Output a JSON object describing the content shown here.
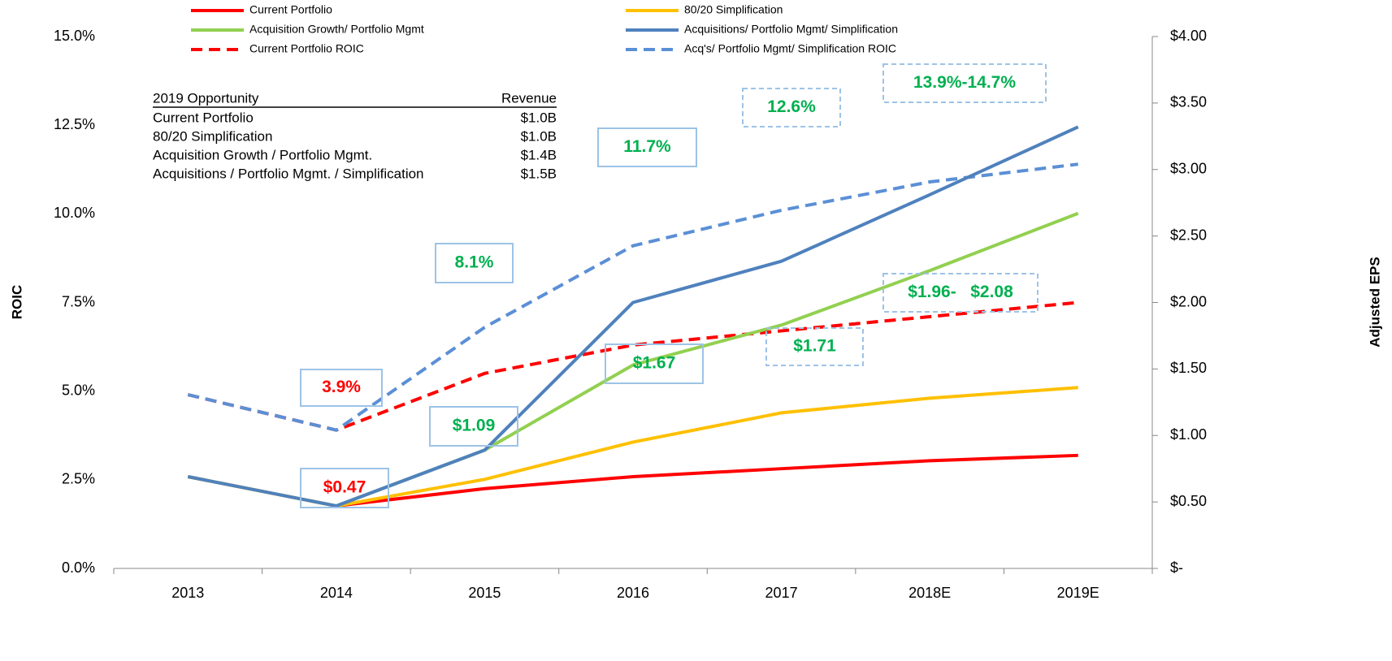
{
  "chart_data": {
    "type": "line",
    "categories": [
      "2013",
      "2014",
      "2015",
      "2016",
      "2017",
      "2018E",
      "2019E"
    ],
    "y_label": "ROIC",
    "y2_label": "Adjusted EPS",
    "ylim": [
      0,
      15
    ],
    "yticks": [
      {
        "value": 0,
        "label": "0.0%"
      },
      {
        "value": 2.5,
        "label": "2.5%"
      },
      {
        "value": 5,
        "label": "5.0%"
      },
      {
        "value": 7.5,
        "label": "7.5%"
      },
      {
        "value": 10,
        "label": "10.0%"
      },
      {
        "value": 12.5,
        "label": "12.5%"
      },
      {
        "value": 15,
        "label": "15.0%"
      }
    ],
    "y2lim": [
      0,
      4
    ],
    "y2ticks": [
      {
        "value": 0,
        "label": "$-"
      },
      {
        "value": 0.5,
        "label": "$0.50"
      },
      {
        "value": 1,
        "label": "$1.00"
      },
      {
        "value": 1.5,
        "label": "$1.50"
      },
      {
        "value": 2,
        "label": "$2.00"
      },
      {
        "value": 2.5,
        "label": "$2.50"
      },
      {
        "value": 3,
        "label": "$3.00"
      },
      {
        "value": 3.5,
        "label": "$3.50"
      },
      {
        "value": 4,
        "label": "$4.00"
      }
    ],
    "series": [
      {
        "name": "Current Portfolio",
        "color": "#ff0000",
        "dashed": false,
        "axis": "y2",
        "values": [
          0.69,
          0.47,
          0.6,
          0.69,
          0.75,
          0.81,
          0.85
        ]
      },
      {
        "name": "80/20 Simplification",
        "color": "#ffc000",
        "dashed": false,
        "axis": "y2",
        "values": [
          0.69,
          0.47,
          0.67,
          0.95,
          1.17,
          1.28,
          1.36
        ]
      },
      {
        "name": "Acquisition Growth/ Portfolio Mgmt",
        "color": "#92d050",
        "dashed": false,
        "axis": "y2",
        "values": [
          0.69,
          0.47,
          0.89,
          1.53,
          1.83,
          2.24,
          2.67
        ]
      },
      {
        "name": "Acquisitions/ Portfolio Mgmt/ Simplification",
        "color": "#4f81bd",
        "dashed": false,
        "axis": "y2",
        "values": [
          0.69,
          0.47,
          0.89,
          2.0,
          2.31,
          2.81,
          3.32
        ]
      },
      {
        "name": "Current Portfolio ROIC",
        "color": "#ff0000",
        "dashed": true,
        "axis": "y",
        "values": [
          4.9,
          3.9,
          5.5,
          6.3,
          6.7,
          7.1,
          7.5
        ]
      },
      {
        "name": "Acq's/ Portfolio Mgmt/ Simplification ROIC",
        "color": "#5b8fd6",
        "dashed": true,
        "axis": "y",
        "values": [
          4.9,
          3.9,
          6.8,
          9.1,
          10.1,
          10.9,
          11.4
        ]
      }
    ],
    "annotations": [
      {
        "text": "3.9%",
        "color": "#ff0000",
        "dashed": false
      },
      {
        "text": "$0.47",
        "color": "#ff0000",
        "dashed": false
      },
      {
        "text": "8.1%",
        "color": "#00b050",
        "dashed": false
      },
      {
        "text": "$1.09",
        "color": "#00b050",
        "dashed": false
      },
      {
        "text": "11.7%",
        "color": "#00b050",
        "dashed": false
      },
      {
        "text": "$1.67",
        "color": "#00b050",
        "dashed": false
      },
      {
        "text": "12.6%",
        "color": "#00b050",
        "dashed": true
      },
      {
        "text": "$1.71",
        "color": "#00b050",
        "dashed": true
      },
      {
        "text": "13.9%-14.7%",
        "color": "#00b050",
        "dashed": true
      },
      {
        "text": "$1.96-   $2.08",
        "color": "#00b050",
        "dashed": true
      }
    ],
    "table": {
      "header": [
        "2019 Opportunity",
        "Revenue"
      ],
      "rows": [
        [
          "Current Portfolio",
          "$1.0B"
        ],
        [
          "80/20 Simplification",
          "$1.0B"
        ],
        [
          "Acquisition Growth / Portfolio Mgmt.",
          "$1.4B"
        ],
        [
          "Acquisitions  / Portfolio Mgmt. / Simplification",
          "$1.5B"
        ]
      ]
    }
  }
}
